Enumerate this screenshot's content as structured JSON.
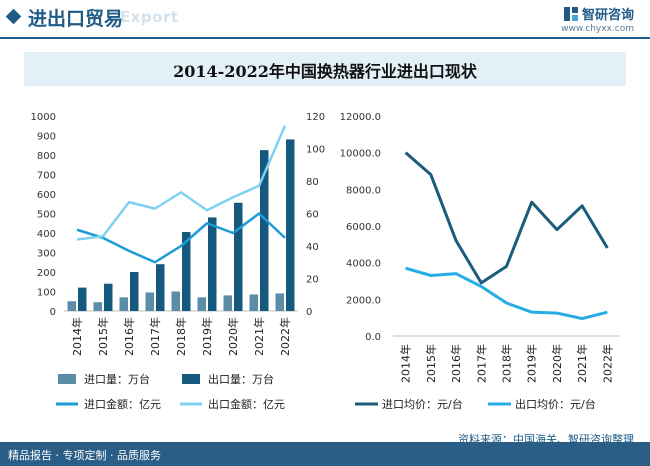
{
  "header": {
    "title": "进出口贸易",
    "title_en": "Export",
    "brand": "智研咨询",
    "url": "www.chyxx.com"
  },
  "chart_title": "2014-2022年中国换热器行业进出口现状",
  "colors": {
    "import_volume": "#5b8ca8",
    "export_volume": "#16597e",
    "import_amount": "#1c9bd6",
    "export_amount": "#7fd1f3",
    "import_price": "#1b5b7c",
    "export_price": "#26aee4"
  },
  "chart_data": [
    {
      "type": "bar",
      "categories": [
        "2014年",
        "2015年",
        "2016年",
        "2017年",
        "2018年",
        "2019年",
        "2020年",
        "2021年",
        "2022年"
      ],
      "left_axis": {
        "ylim": [
          0,
          1000
        ],
        "ticks": [
          "0",
          "100",
          "200",
          "300",
          "400",
          "500",
          "600",
          "700",
          "800",
          "900",
          "1000"
        ]
      },
      "right_axis": {
        "ylim": [
          0,
          120
        ],
        "ticks": [
          "0",
          "20",
          "40",
          "60",
          "80",
          "100",
          "120"
        ]
      },
      "series": [
        {
          "name": "进口量：万台",
          "kind": "bar",
          "axis": "left",
          "values": [
            50,
            45,
            70,
            95,
            100,
            70,
            80,
            85,
            90
          ]
        },
        {
          "name": "出口量：万台",
          "kind": "bar",
          "axis": "left",
          "values": [
            120,
            140,
            200,
            240,
            405,
            480,
            555,
            825,
            880
          ]
        },
        {
          "name": "进口金额：亿元",
          "kind": "line",
          "axis": "right",
          "values": [
            50,
            45,
            37,
            30,
            40,
            54,
            48,
            60,
            45
          ]
        },
        {
          "name": "出口金额：亿元",
          "kind": "line",
          "axis": "right",
          "values": [
            44,
            46,
            67,
            63,
            73,
            62,
            70,
            77,
            114
          ]
        }
      ]
    },
    {
      "type": "line",
      "categories": [
        "2014年",
        "2015年",
        "2016年",
        "2017年",
        "2018年",
        "2019年",
        "2020年",
        "2021年",
        "2022年"
      ],
      "ylim": [
        0,
        12000
      ],
      "ticks": [
        "0.0",
        "2000.0",
        "4000.0",
        "6000.0",
        "8000.0",
        "10000.0",
        "12000.0"
      ],
      "series": [
        {
          "name": "进口均价：元/台",
          "values": [
            10000,
            8800,
            5200,
            2900,
            3800,
            7300,
            5800,
            7100,
            4800
          ]
        },
        {
          "name": "出口均价：元/台",
          "values": [
            3700,
            3300,
            3400,
            2700,
            1800,
            1300,
            1250,
            950,
            1300
          ]
        }
      ]
    }
  ],
  "source": "资料来源：中国海关、智研咨询整理",
  "footer": "精品报告 · 专项定制 · 品质服务"
}
